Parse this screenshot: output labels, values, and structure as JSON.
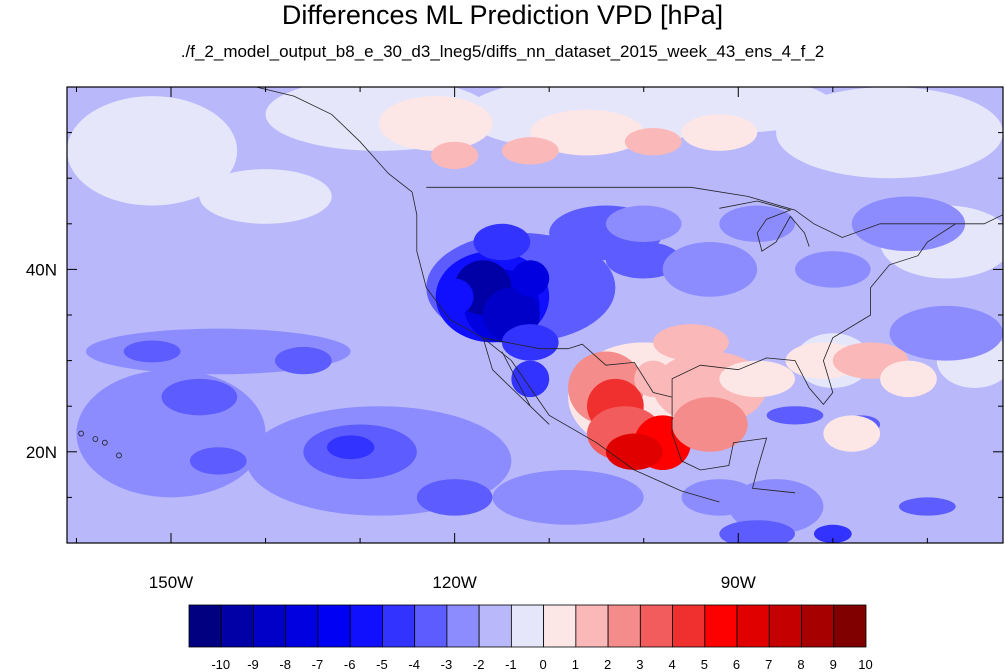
{
  "title": "Differences ML Prediction VPD [hPa]",
  "subtitle": "./f_2_model_output_b8_e_30_d3_lneg5/diffs_nn_dataset_2015_week_43_ens_4_f_2",
  "map": {
    "lon_range": [
      -161,
      -62
    ],
    "lat_range": [
      10,
      60
    ],
    "lon_labels": [
      {
        "lon": -150,
        "text": "150W"
      },
      {
        "lon": -120,
        "text": "120W"
      },
      {
        "lon": -90,
        "text": "90W"
      }
    ],
    "lat_labels": [
      {
        "lat": 40,
        "text": "40N"
      },
      {
        "lat": 20,
        "text": "20N"
      }
    ],
    "background_value": -0.5
  },
  "colorbar": {
    "labels": [
      "-10",
      "-9",
      "-8",
      "-7",
      "-6",
      "-5",
      "-4",
      "-3",
      "-2",
      "-1",
      "0",
      "1",
      "2",
      "3",
      "4",
      "5",
      "6",
      "7",
      "8",
      "9",
      "10"
    ],
    "colors": [
      "#000080",
      "#0000a6",
      "#0000c8",
      "#0000e0",
      "#0000f5",
      "#1010ff",
      "#3333ff",
      "#5c5cff",
      "#8c8cff",
      "#b8b8fb",
      "#e6e6fb",
      "#fde6e6",
      "#fbb8b8",
      "#f58c8c",
      "#f25c5c",
      "#f02f2f",
      "#ff0000",
      "#e00000",
      "#c40000",
      "#a60000",
      "#800000"
    ]
  }
}
